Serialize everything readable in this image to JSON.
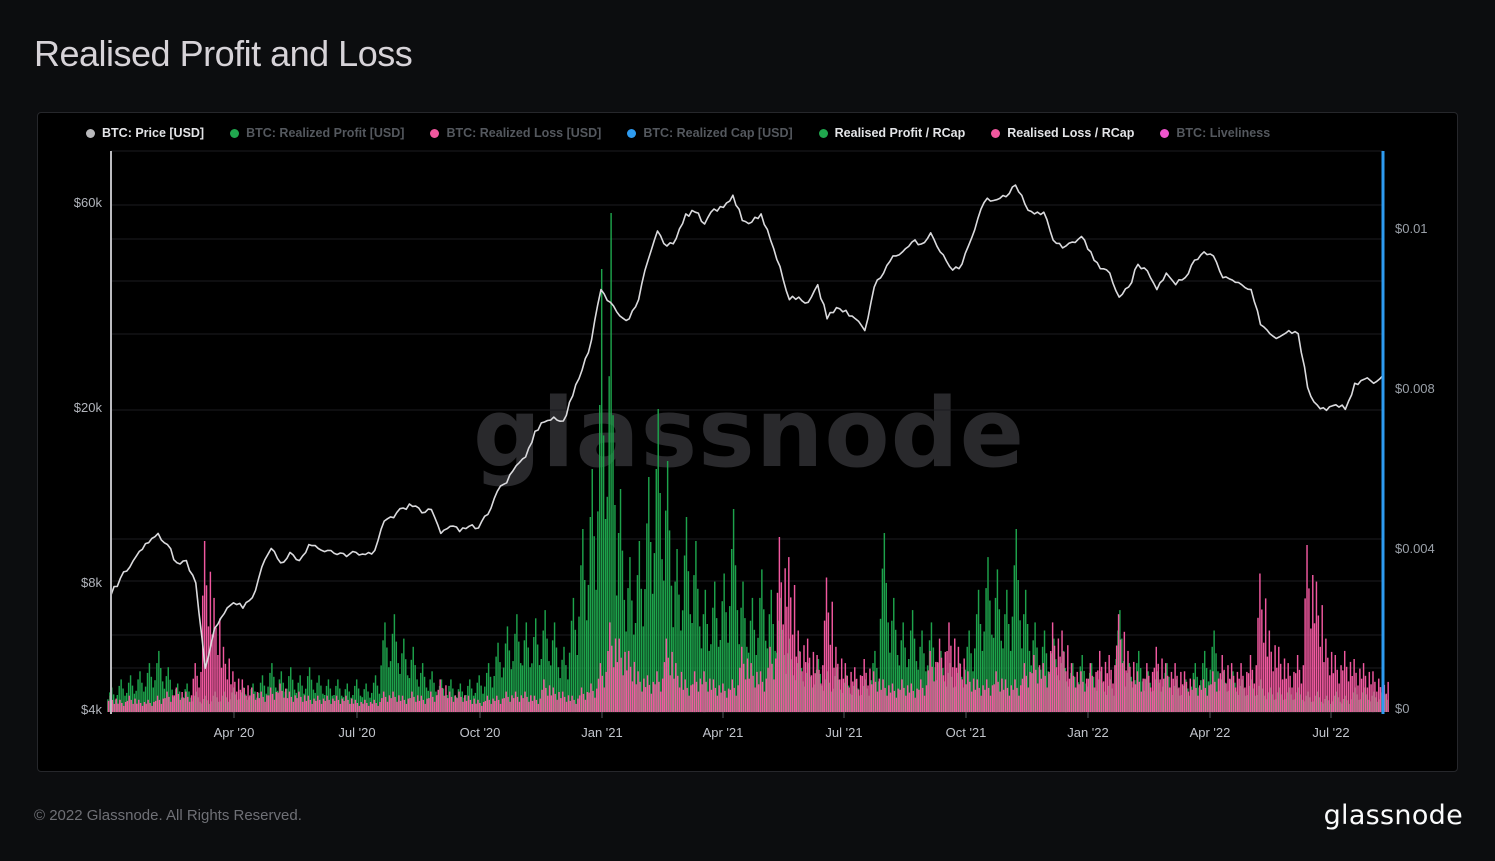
{
  "page": {
    "title": "Realised Profit and Loss",
    "footer_copyright": "© 2022 Glassnode. All Rights Reserved.",
    "brand_logo_text": "glassnode",
    "watermark_text": "glassnode"
  },
  "legend": {
    "items": [
      {
        "label": "BTC: Price [USD]",
        "color": "#b9b9bc",
        "active": true
      },
      {
        "label": "BTC: Realized Profit [USD]",
        "color": "#20a84e",
        "active": false
      },
      {
        "label": "BTC: Realized Loss [USD]",
        "color": "#f0589f",
        "active": false
      },
      {
        "label": "BTC: Realized Cap [USD]",
        "color": "#2e9bf0",
        "active": false
      },
      {
        "label": "Realised Profit / RCap",
        "color": "#20a84e",
        "active": true
      },
      {
        "label": "Realised Loss / RCap",
        "color": "#f0589f",
        "active": true
      },
      {
        "label": "BTC: Liveliness",
        "color": "#ee55cc",
        "active": false
      }
    ]
  },
  "chart_data": {
    "type": "mixed",
    "description": "BTC price line (left log axis, USD) with Realised Profit / RCap and Realised Loss / RCap ratio bars (right axis), weekly samples Jan 2020 - Aug 2022",
    "x_start": "2020-01-06",
    "x_interval_days": 7,
    "x_tick_labels": [
      "Apr '20",
      "Jul '20",
      "Oct '20",
      "Jan '21",
      "Apr '21",
      "Jul '21",
      "Oct '21",
      "Jan '22",
      "Apr '22",
      "Jul '22"
    ],
    "left_axis": {
      "scale": "log",
      "unit": "USD",
      "ticks": [
        "$60k",
        "$20k",
        "$8k",
        "$4k"
      ],
      "tick_values": [
        60000,
        20000,
        8000,
        4000
      ]
    },
    "right_axis": {
      "scale": "linear-ish",
      "unit": "ratio",
      "ticks": [
        "$0.01",
        "$0.008",
        "$0.004",
        "$0"
      ],
      "tick_values": [
        0.01,
        0.008,
        0.004,
        0
      ]
    },
    "series": [
      {
        "name": "BTC: Price [USD]",
        "type": "line",
        "axis": "left",
        "color": "#dadadd",
        "values": [
          7400,
          8100,
          8600,
          9350,
          9800,
          10300,
          9700,
          8800,
          8900,
          7900,
          5000,
          6200,
          6700,
          7100,
          6900,
          7300,
          8600,
          9500,
          8800,
          9300,
          8900,
          9700,
          9500,
          9400,
          9200,
          9100,
          9300,
          9200,
          9400,
          11000,
          11200,
          11800,
          11900,
          11500,
          11700,
          10300,
          10700,
          10400,
          10700,
          10600,
          11400,
          12900,
          13500,
          14800,
          15500,
          17800,
          18700,
          19200,
          18800,
          21500,
          24700,
          29000,
          38000,
          35500,
          33000,
          32500,
          36000,
          44500,
          52000,
          48000,
          50000,
          57000,
          57500,
          54000,
          58500,
          59000,
          63000,
          55000,
          54500,
          57000,
          49500,
          43000,
          36000,
          36500,
          35500,
          39000,
          32500,
          34500,
          34000,
          32500,
          30500,
          38500,
          41500,
          45500,
          46500,
          49000,
          48500,
          51500,
          46500,
          43000,
          42500,
          48000,
          55500,
          62000,
          61500,
          62500,
          66500,
          60000,
          57000,
          57500,
          49500,
          47500,
          49000,
          50500,
          46500,
          42500,
          41500,
          36500,
          38500,
          43500,
          42000,
          38000,
          41500,
          39000,
          40500,
          44500,
          46500,
          45500,
          40500,
          40000,
          39000,
          38000,
          31500,
          30000,
          29500,
          30500,
          30000,
          22500,
          20500,
          19900,
          20500,
          20000,
          23000,
          23500,
          23000,
          24000
        ]
      },
      {
        "name": "Realised Profit / RCap",
        "type": "bar",
        "axis": "right",
        "color": "#1da24b",
        "values": [
          0.0006,
          0.0008,
          0.0009,
          0.001,
          0.0012,
          0.0015,
          0.0011,
          0.0007,
          0.0007,
          0.0005,
          0.0004,
          0.0005,
          0.0005,
          0.0006,
          0.0006,
          0.0007,
          0.0009,
          0.0012,
          0.001,
          0.0011,
          0.0009,
          0.0011,
          0.0009,
          0.0008,
          0.0008,
          0.0007,
          0.0008,
          0.0007,
          0.0009,
          0.0022,
          0.0024,
          0.0018,
          0.0016,
          0.0012,
          0.001,
          0.0008,
          0.0008,
          0.0007,
          0.0008,
          0.0009,
          0.0012,
          0.0017,
          0.0021,
          0.0024,
          0.0022,
          0.0023,
          0.0025,
          0.0022,
          0.0016,
          0.0028,
          0.0045,
          0.006,
          0.0095,
          0.0102,
          0.0055,
          0.0038,
          0.0042,
          0.0058,
          0.0075,
          0.0062,
          0.004,
          0.0048,
          0.0042,
          0.003,
          0.0032,
          0.0034,
          0.005,
          0.0032,
          0.0028,
          0.0035,
          0.003,
          0.0028,
          0.0018,
          0.0015,
          0.0012,
          0.0013,
          0.001,
          0.0011,
          0.0009,
          0.0008,
          0.0008,
          0.0015,
          0.0044,
          0.0028,
          0.0022,
          0.0025,
          0.002,
          0.0022,
          0.0015,
          0.0012,
          0.0012,
          0.002,
          0.003,
          0.0038,
          0.0035,
          0.003,
          0.0045,
          0.003,
          0.0022,
          0.002,
          0.0018,
          0.0015,
          0.0012,
          0.0014,
          0.0012,
          0.001,
          0.0008,
          0.0025,
          0.0012,
          0.0015,
          0.001,
          0.001,
          0.0012,
          0.0008,
          0.0008,
          0.0012,
          0.0015,
          0.002,
          0.001,
          0.001,
          0.0008,
          0.0008,
          0.0008,
          0.0006,
          0.0006,
          0.0006,
          0.0006,
          0.0005,
          0.0005,
          0.0004,
          0.0005,
          0.0004,
          0.0006,
          0.0006,
          0.0005,
          0.0006
        ]
      },
      {
        "name": "Realised Loss / RCap",
        "type": "bar",
        "axis": "right",
        "color": "#f0589f",
        "values": [
          0.0004,
          0.0003,
          0.0004,
          0.0003,
          0.0003,
          0.0004,
          0.0005,
          0.0006,
          0.0005,
          0.0012,
          0.0042,
          0.0028,
          0.0016,
          0.001,
          0.0008,
          0.0006,
          0.0005,
          0.0006,
          0.0007,
          0.0005,
          0.0005,
          0.0004,
          0.0004,
          0.0004,
          0.0004,
          0.0004,
          0.0003,
          0.0003,
          0.0003,
          0.0005,
          0.0005,
          0.0004,
          0.0005,
          0.0004,
          0.0005,
          0.0008,
          0.0005,
          0.0005,
          0.0004,
          0.0003,
          0.0004,
          0.0004,
          0.0005,
          0.0005,
          0.0005,
          0.0004,
          0.0008,
          0.0006,
          0.0005,
          0.0004,
          0.0006,
          0.0007,
          0.0012,
          0.0022,
          0.0018,
          0.0015,
          0.001,
          0.0009,
          0.001,
          0.0018,
          0.0012,
          0.0008,
          0.001,
          0.001,
          0.0008,
          0.0007,
          0.0008,
          0.0016,
          0.0012,
          0.001,
          0.0016,
          0.0043,
          0.0038,
          0.002,
          0.0018,
          0.0014,
          0.0033,
          0.0016,
          0.0012,
          0.0011,
          0.0013,
          0.001,
          0.0008,
          0.0007,
          0.0008,
          0.0007,
          0.0008,
          0.0015,
          0.0018,
          0.0022,
          0.0016,
          0.001,
          0.0008,
          0.0008,
          0.001,
          0.0008,
          0.0008,
          0.0012,
          0.0014,
          0.0012,
          0.0022,
          0.002,
          0.0012,
          0.001,
          0.0012,
          0.0015,
          0.0014,
          0.0024,
          0.0015,
          0.001,
          0.0012,
          0.0016,
          0.0012,
          0.0012,
          0.001,
          0.0008,
          0.0008,
          0.001,
          0.0014,
          0.0012,
          0.0012,
          0.0014,
          0.0034,
          0.002,
          0.0016,
          0.0012,
          0.0014,
          0.0041,
          0.0032,
          0.0018,
          0.0014,
          0.0015,
          0.0013,
          0.0012,
          0.001,
          0.0009
        ]
      }
    ]
  }
}
